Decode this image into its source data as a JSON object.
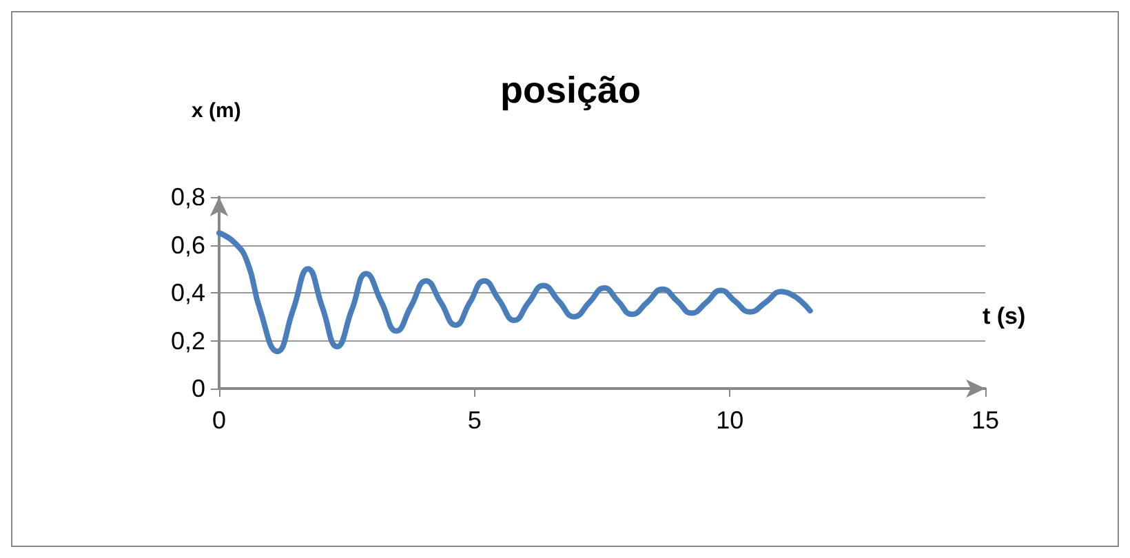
{
  "chart_data": {
    "type": "line",
    "title": "posição",
    "xlabel": "t (s)",
    "ylabel": "x (m)",
    "x": [
      0,
      0.3,
      0.55,
      0.8,
      1.14,
      1.45,
      1.74,
      2.02,
      2.31,
      2.6,
      2.88,
      3.18,
      3.47,
      3.76,
      4.05,
      4.34,
      4.63,
      4.91,
      5.19,
      5.48,
      5.78,
      6.06,
      6.35,
      6.65,
      6.95,
      7.25,
      7.54,
      7.81,
      8.08,
      8.38,
      8.68,
      8.97,
      9.25,
      9.54,
      9.82,
      10.1,
      10.39,
      10.7,
      11.0,
      11.57
    ],
    "series": [
      {
        "color": "#4a7ebb",
        "values": [
          0.65,
          0.61,
          0.53,
          0.33,
          0.155,
          0.33,
          0.5,
          0.34,
          0.175,
          0.33,
          0.48,
          0.36,
          0.24,
          0.345,
          0.45,
          0.36,
          0.265,
          0.36,
          0.45,
          0.37,
          0.285,
          0.36,
          0.43,
          0.365,
          0.3,
          0.36,
          0.42,
          0.365,
          0.31,
          0.36,
          0.415,
          0.365,
          0.315,
          0.36,
          0.41,
          0.365,
          0.32,
          0.36,
          0.405,
          0.325
        ]
      }
    ],
    "xlim": [
      0,
      15
    ],
    "xticks": [
      0,
      5,
      10,
      15
    ],
    "ylim": [
      0,
      0.8
    ],
    "yticks": [
      {
        "value": 0,
        "label": "0"
      },
      {
        "value": 0.2,
        "label": "0,2"
      },
      {
        "value": 0.4,
        "label": "0,4"
      },
      {
        "value": 0.6,
        "label": "0,6"
      },
      {
        "value": 0.8,
        "label": "0,8"
      }
    ],
    "grid": "y",
    "marker": "none",
    "line_style": "solid"
  }
}
